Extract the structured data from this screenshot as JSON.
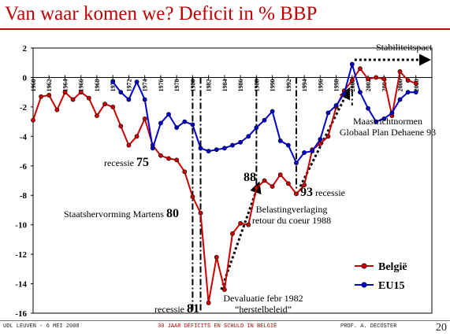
{
  "slide": {
    "title": "Van waar komen we? Deficit in % BBP",
    "footer_left": "UDL LEUVEN - 6 MEI 2008",
    "footer_center": "30 JAAR DEFICITS EN SCHULD IN BELGIË",
    "footer_right": "PROF. A. DECOSTER",
    "page_number": "20"
  },
  "chart_data": {
    "type": "line",
    "title": "",
    "xlabel": "",
    "ylabel": "",
    "ylim": [
      -16,
      2
    ],
    "xlim": [
      1960,
      2010
    ],
    "y_ticks": [
      2,
      0,
      -2,
      -4,
      -6,
      -8,
      -10,
      -12,
      -14,
      -16
    ],
    "x_ticks": [
      1960,
      1962,
      1964,
      1966,
      1968,
      1970,
      1972,
      1974,
      1976,
      1978,
      1980,
      1982,
      1984,
      1986,
      1988,
      1990,
      1992,
      1994,
      1996,
      1998,
      2000,
      2002,
      2004,
      2006,
      2008
    ],
    "legend_position": "bottom-right",
    "series": [
      {
        "name": "België",
        "color": "#cc0000",
        "x": [
          1960,
          1961,
          1962,
          1963,
          1964,
          1965,
          1966,
          1967,
          1968,
          1969,
          1970,
          1971,
          1972,
          1973,
          1974,
          1975,
          1976,
          1977,
          1978,
          1979,
          1980,
          1981,
          1982,
          1983,
          1984,
          1985,
          1986,
          1987,
          1988,
          1989,
          1990,
          1991,
          1992,
          1993,
          1994,
          1995,
          1996,
          1997,
          1998,
          1999,
          2000,
          2001,
          2002,
          2003,
          2004,
          2005,
          2006,
          2007,
          2008
        ],
        "values": [
          -2.9,
          -1.3,
          -1.2,
          -2.2,
          -1.0,
          -1.5,
          -1.0,
          -1.4,
          -2.6,
          -1.8,
          -2.0,
          -3.3,
          -4.6,
          -4.0,
          -2.8,
          -4.6,
          -5.3,
          -5.5,
          -5.6,
          -6.4,
          -8.1,
          -9.2,
          -15.3,
          -12.2,
          -14.4,
          -10.6,
          -9.9,
          -10.0,
          -7.5,
          -7.0,
          -7.4,
          -6.6,
          -7.2,
          -7.9,
          -7.3,
          -4.9,
          -4.5,
          -4.0,
          -2.0,
          -0.9,
          -0.2,
          0.6,
          -0.1,
          0.0,
          -0.1,
          -2.6,
          0.4,
          -0.2,
          -0.4
        ]
      },
      {
        "name": "EU15",
        "color": "#0000cc",
        "x": [
          1970,
          1971,
          1972,
          1973,
          1974,
          1975,
          1976,
          1977,
          1978,
          1979,
          1980,
          1981,
          1982,
          1983,
          1984,
          1985,
          1986,
          1987,
          1988,
          1989,
          1990,
          1991,
          1992,
          1993,
          1994,
          1995,
          1996,
          1997,
          1998,
          1999,
          2000,
          2001,
          2002,
          2003,
          2004,
          2005,
          2006,
          2007,
          2008
        ],
        "values": [
          -0.3,
          -1.0,
          -1.5,
          -0.3,
          -1.5,
          -4.8,
          -3.1,
          -2.5,
          -3.4,
          -3.0,
          -3.2,
          -4.8,
          -5.0,
          -4.9,
          -4.8,
          -4.6,
          -4.4,
          -4.0,
          -3.4,
          -2.9,
          -2.3,
          -4.3,
          -4.6,
          -5.8,
          -5.1,
          -5.0,
          -4.2,
          -2.4,
          -1.9,
          -1.1,
          0.9,
          -1.0,
          -2.1,
          -3.0,
          -2.8,
          -2.4,
          -1.5,
          -1.0,
          -1.0
        ]
      }
    ],
    "markers": [
      {
        "x": 1980,
        "y_top": 0,
        "y_bottom": -16
      },
      {
        "x": 1981,
        "y_top": 0,
        "y_bottom": -16
      },
      {
        "x": 1988,
        "y_top": 0,
        "y_bottom": -7.5
      },
      {
        "x": 1993,
        "y_top": 0,
        "y_bottom": -7.6
      },
      {
        "x": 2000,
        "y_top": 0,
        "y_bottom": -1.9
      }
    ],
    "annotations": [
      {
        "text": "recessie ",
        "strong": "75"
      },
      {
        "text": "Staatshervorming Martens ",
        "strong": "80"
      },
      {
        "text": "recessie ",
        "strong": "81"
      },
      {
        "text": "",
        "strong": "88"
      },
      {
        "text": "",
        "strong": "93",
        "suffix": " recessie"
      },
      {
        "text": "Belastingverlaging",
        "line2": "retour du coeur 1988"
      },
      {
        "text": "Devaluatie febr 1982",
        "line2": "“herstelbeleid”"
      },
      {
        "text": "Maastrichtnormen",
        "line2": "Globaal Plan Dehaene 93"
      },
      {
        "text": "Stabiliteitspact"
      }
    ]
  }
}
